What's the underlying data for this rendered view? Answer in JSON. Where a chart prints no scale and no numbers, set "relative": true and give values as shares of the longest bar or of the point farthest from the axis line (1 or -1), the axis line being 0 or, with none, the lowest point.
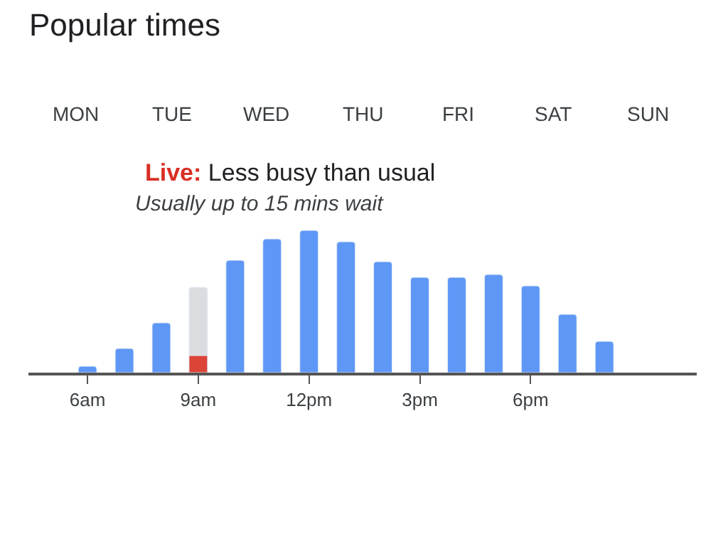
{
  "chart_data": {
    "type": "bar",
    "title": "Popular times",
    "relative": true,
    "categories": [
      "6am",
      null,
      null,
      "9am",
      null,
      null,
      "12pm",
      null,
      null,
      "3pm",
      null,
      null,
      "6pm",
      null,
      null,
      null,
      null
    ],
    "series": [
      {
        "colors": [
          "#5e97f6",
          "#5e97f6",
          "#5e97f6",
          "#dadce0",
          "#5e97f6",
          "#5e97f6",
          "#5e97f6",
          "#5e97f6",
          "#5e97f6",
          "#5e97f6",
          "#5e97f6",
          "#5e97f6",
          "#5e97f6",
          "#5e97f6",
          "#5e97f6",
          "#5e97f6",
          "#5e97f6"
        ],
        "values": [
          0.045,
          0.17,
          0.35,
          0.6,
          0.79,
          0.94,
          1,
          0.92,
          0.78,
          0.67,
          0.67,
          0.69,
          0.61,
          0.41,
          0.22,
          null,
          null
        ]
      },
      {
        "color": "#db4437",
        "values": [
          null,
          null,
          null,
          0.12,
          null,
          null,
          null,
          null,
          null,
          null,
          null,
          null,
          null,
          null,
          null,
          null,
          null
        ]
      }
    ],
    "annotations": [
      "MON",
      "TUE",
      "WED",
      "THU",
      "FRI",
      "SAT",
      "SUN",
      "Live: Less busy than usual",
      "Usually up to 15 mins wait"
    ]
  }
}
